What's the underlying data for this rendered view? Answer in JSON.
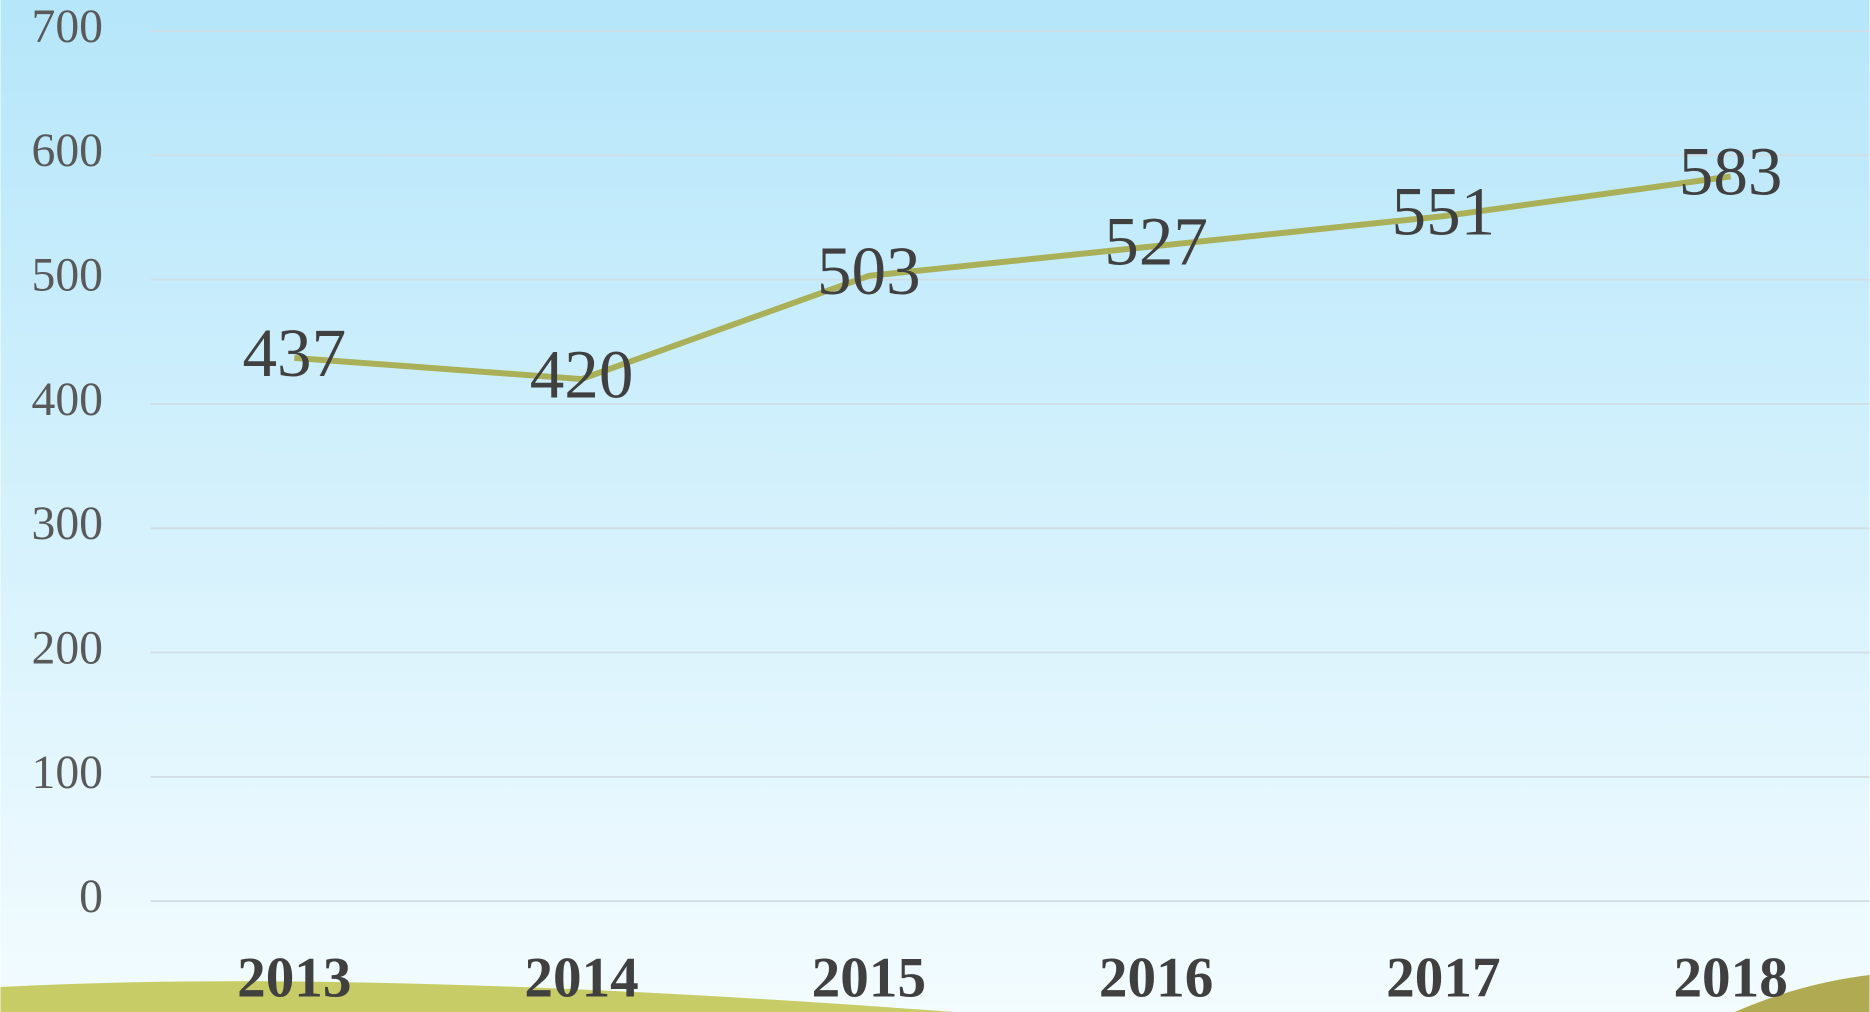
{
  "chart_data": {
    "type": "line",
    "categories": [
      "2013",
      "2014",
      "2015",
      "2016",
      "2017",
      "2018"
    ],
    "series": [
      {
        "color": "#a9b058",
        "values": [
          437,
          420,
          503,
          527,
          551,
          583
        ]
      }
    ],
    "ylim": [
      0,
      700
    ],
    "yticks": [
      0,
      100,
      200,
      300,
      400,
      500,
      600,
      700
    ],
    "grid": true
  }
}
